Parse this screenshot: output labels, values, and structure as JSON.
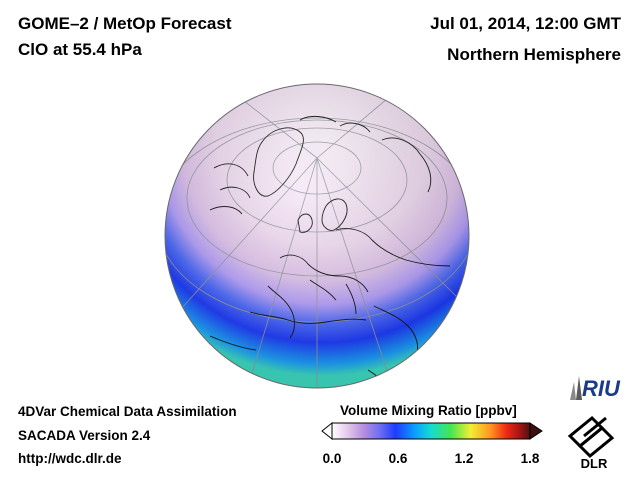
{
  "header": {
    "title_left_line1": "GOME–2 / MetOp Forecast",
    "title_left_line2": "ClO at 55.4 hPa",
    "title_right_line1": "Jul 01, 2014, 12:00 GMT",
    "title_right_line2": "Northern Hemisphere"
  },
  "footer": {
    "line1": "4DVar Chemical Data Assimilation",
    "line2": "SACADA Version 2.4",
    "line3": "http://wdc.dlr.de"
  },
  "colorbar": {
    "title": "Volume Mixing Ratio [ppbv]",
    "range": [
      0.0,
      1.8
    ],
    "ticks": [
      "0.0",
      "0.6",
      "1.2",
      "1.8"
    ],
    "colors": [
      "#ffffff",
      "#e3c8ea",
      "#b58fe0",
      "#6f6ff0",
      "#1e3cff",
      "#0aa0ff",
      "#14dcd2",
      "#46e650",
      "#f0f032",
      "#ff9622",
      "#f02a14",
      "#a01414",
      "#501010"
    ]
  },
  "map": {
    "projection": "orthographic",
    "hemisphere_label": "Northern Hemisphere",
    "ocean_low": "#1e3cff",
    "field_color_high_lat": "#f4e6f6"
  },
  "logos": {
    "riu": "RIU",
    "dlr": "DLR"
  }
}
